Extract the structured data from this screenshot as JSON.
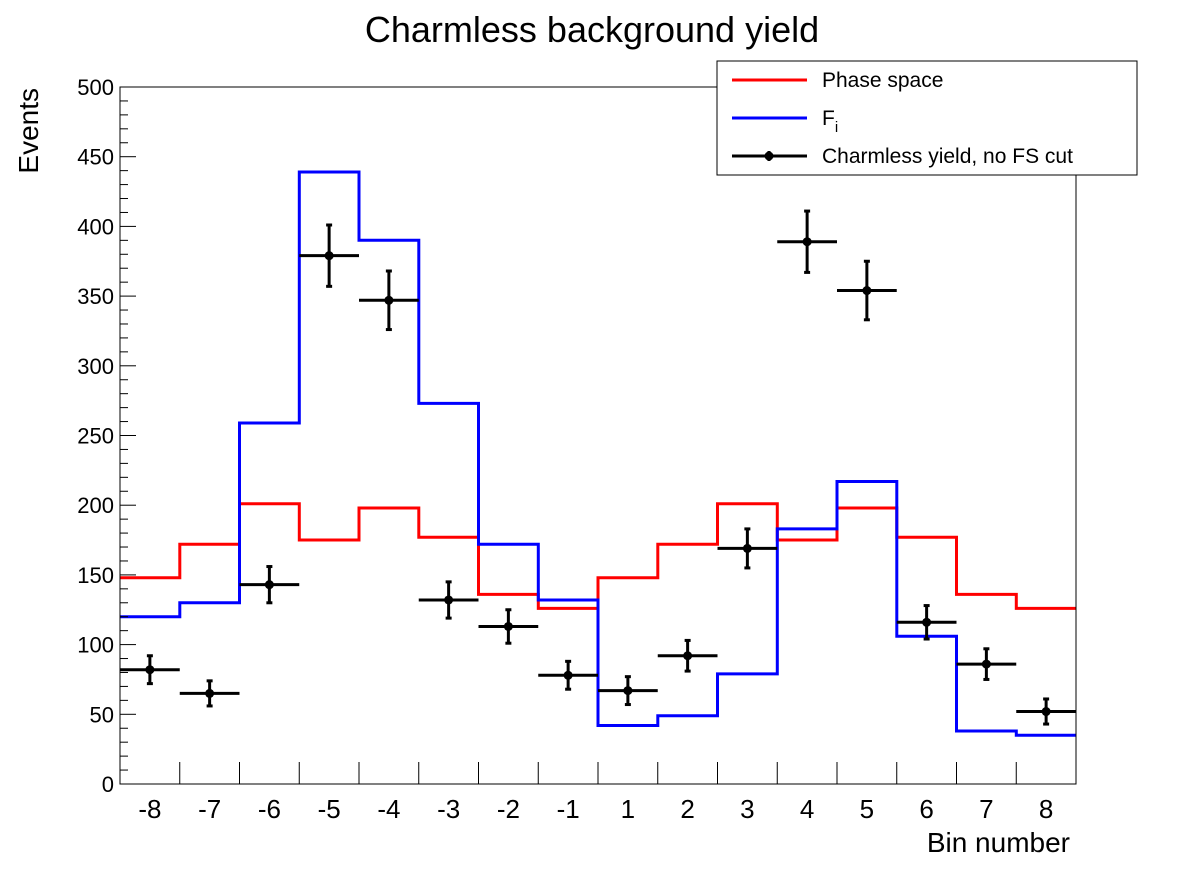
{
  "chart_data": {
    "type": "line",
    "title": "Charmless background yield",
    "xlabel": "Bin number",
    "ylabel": "Events",
    "ylim": [
      0,
      500
    ],
    "y_ticks": [
      "0",
      "50",
      "100",
      "150",
      "200",
      "250",
      "300",
      "350",
      "400",
      "450",
      "500"
    ],
    "categories": [
      "-8",
      "-7",
      "-6",
      "-5",
      "-4",
      "-3",
      "-2",
      "-1",
      "1",
      "2",
      "3",
      "4",
      "5",
      "6",
      "7",
      "8"
    ],
    "legend_position": "top-right",
    "series": [
      {
        "name": "Phase space",
        "style": "step",
        "color": "#ff0000",
        "values": [
          148,
          172,
          201,
          175,
          198,
          177,
          136,
          126,
          148,
          172,
          201,
          175,
          198,
          177,
          136,
          126
        ]
      },
      {
        "name": "F",
        "name_subscript": "i",
        "style": "step",
        "color": "#0000ff",
        "values": [
          120,
          130,
          259,
          439,
          390,
          273,
          172,
          132,
          42,
          49,
          79,
          183,
          217,
          106,
          38,
          35
        ]
      },
      {
        "name": "Charmless yield, no FS cut",
        "style": "points-errorbars",
        "color": "#000000",
        "values": [
          82,
          65,
          143,
          379,
          347,
          132,
          113,
          78,
          67,
          92,
          169,
          389,
          354,
          116,
          86,
          52
        ],
        "errors": [
          10,
          9,
          13,
          22,
          21,
          13,
          12,
          10,
          10,
          11,
          14,
          22,
          21,
          12,
          11,
          9
        ]
      }
    ]
  }
}
